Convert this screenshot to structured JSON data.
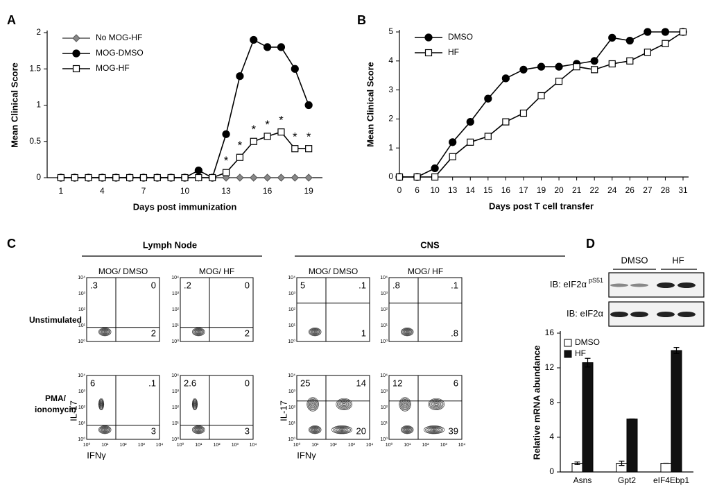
{
  "panel_labels": [
    "A",
    "B",
    "C",
    "D"
  ],
  "chart_data": [
    {
      "type": "line",
      "x_label": "Days post immunization",
      "y_label": "Mean Clinical Score",
      "x": [
        1,
        2,
        3,
        4,
        5,
        6,
        7,
        8,
        9,
        10,
        11,
        12,
        13,
        14,
        15,
        16,
        17,
        18,
        19
      ],
      "series": [
        {
          "name": "No MOG-HF",
          "color": "#555555",
          "marker": "diamond",
          "marker_fill": "#888888",
          "values": [
            0,
            0,
            0,
            0,
            0,
            0,
            0,
            0,
            0,
            0,
            0,
            0,
            0,
            0,
            0,
            0,
            0,
            0,
            0
          ]
        },
        {
          "name": "MOG-DMSO",
          "color": "#000000",
          "marker": "circle",
          "marker_fill": "#000000",
          "values": [
            0,
            0,
            0,
            0,
            0,
            0,
            0,
            0,
            0,
            0,
            0.1,
            0,
            0.6,
            1.4,
            1.9,
            1.8,
            1.8,
            1.5,
            1.0
          ]
        },
        {
          "name": "MOG-HF",
          "color": "#000000",
          "marker": "square",
          "marker_fill": "#ffffff",
          "values": [
            0,
            0,
            0,
            0,
            0,
            0,
            0,
            0,
            0,
            0,
            0,
            0,
            0.07,
            0.28,
            0.5,
            0.57,
            0.63,
            0.4,
            0.4
          ]
        }
      ],
      "annotations": [
        {
          "text": "*",
          "x": 13
        },
        {
          "text": "*",
          "x": 14
        },
        {
          "text": "*",
          "x": 15
        },
        {
          "text": "*",
          "x": 16
        },
        {
          "text": "*",
          "x": 17
        },
        {
          "text": "*",
          "x": 18
        },
        {
          "text": "*",
          "x": 19
        }
      ],
      "xlim": [
        0,
        20
      ],
      "xticks": [
        1,
        4,
        7,
        10,
        13,
        16,
        19
      ],
      "ylim": [
        0,
        2
      ],
      "yticks": [
        0,
        0.5,
        1,
        1.5,
        2
      ],
      "legend": "top-left"
    },
    {
      "type": "line",
      "x_label": "Days post T cell transfer",
      "y_label": "Mean Clinical Score",
      "categories": [
        "0",
        "6",
        "10",
        "13",
        "14",
        "15",
        "16",
        "17",
        "19",
        "20",
        "21",
        "22",
        "24",
        "26",
        "27",
        "28",
        "31"
      ],
      "series": [
        {
          "name": "DMSO",
          "color": "#000000",
          "marker": "circle",
          "marker_fill": "#000000",
          "values": [
            0,
            0,
            0.3,
            1.2,
            1.9,
            2.7,
            3.4,
            3.7,
            3.8,
            3.8,
            3.9,
            4.0,
            4.8,
            4.7,
            5,
            5,
            5
          ]
        },
        {
          "name": "HF",
          "color": "#000000",
          "marker": "square",
          "marker_fill": "#ffffff",
          "values": [
            0,
            0,
            0,
            0.7,
            1.2,
            1.4,
            1.9,
            2.2,
            2.8,
            3.3,
            3.8,
            3.7,
            3.9,
            4.0,
            4.3,
            4.6,
            5
          ]
        }
      ],
      "ylim": [
        0,
        5
      ],
      "yticks": [
        0,
        1,
        2,
        3,
        4,
        5
      ],
      "legend": "top-left"
    },
    {
      "type": "bar",
      "y_label": "Relative mRNA abundance",
      "categories": [
        "Asns",
        "Gpt2",
        "eIF4Ebp1"
      ],
      "series": [
        {
          "name": "DMSO",
          "color": "#ffffff",
          "values": [
            1,
            1,
            1
          ],
          "errors": [
            0.15,
            0.25,
            0
          ]
        },
        {
          "name": "HF",
          "color": "#111111",
          "values": [
            12.6,
            6.1,
            14.0
          ],
          "errors": [
            0.5,
            0,
            0.35
          ]
        }
      ],
      "ylim": [
        0,
        16
      ],
      "yticks": [
        0,
        4,
        8,
        12,
        16
      ],
      "legend": "top-left"
    }
  ],
  "flow": {
    "groups": [
      "Lymph Node",
      "CNS"
    ],
    "columns": [
      "MOG/ DMSO",
      "MOG/ HF",
      "MOG/ DMSO",
      "MOG/ HF"
    ],
    "rows": [
      "Unstimulated",
      "PMA/ ionomycin"
    ],
    "quadrants": [
      [
        [
          ".3",
          "0",
          "2"
        ],
        [
          ".2",
          "0",
          "2"
        ],
        [
          "5",
          ".1",
          "1"
        ],
        [
          ".8",
          ".1",
          ".8"
        ]
      ],
      [
        [
          "6",
          ".1",
          "3"
        ],
        [
          "2.6",
          "0",
          "3"
        ],
        [
          "25",
          "14",
          "20"
        ],
        [
          "12",
          "6",
          "39"
        ]
      ]
    ],
    "x_label": "IFNγ",
    "y_label": "IL-17",
    "ticks": [
      "10⁰",
      "10¹",
      "10²",
      "10³",
      "10⁴"
    ]
  },
  "blot": {
    "lanes": [
      "DMSO",
      "HF"
    ],
    "rows": [
      {
        "label": "IB: eIF2α",
        "superscript": "pS51"
      },
      {
        "label": "IB: eIF2α"
      }
    ]
  }
}
